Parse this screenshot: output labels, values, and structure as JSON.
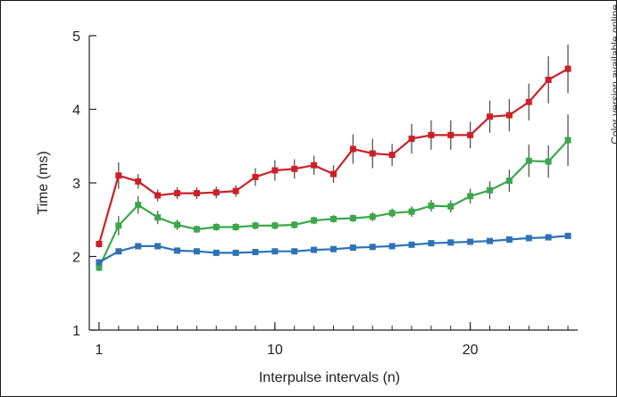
{
  "side_note": "Color version available online",
  "chart_data": {
    "type": "line",
    "title": "",
    "xlabel": "Interpulse intervals (n)",
    "ylabel": "Time (ms)",
    "xlim": [
      0.5,
      25.5
    ],
    "ylim": [
      1,
      5
    ],
    "xticks": [
      1,
      10,
      20
    ],
    "yticks": [
      1,
      2,
      3,
      4,
      5
    ],
    "grid": false,
    "legend": "none",
    "x": [
      1,
      2,
      3,
      4,
      5,
      6,
      7,
      8,
      9,
      10,
      11,
      12,
      13,
      14,
      15,
      16,
      17,
      18,
      19,
      20,
      21,
      22,
      23,
      24,
      25
    ],
    "series": [
      {
        "color": "#cc2026",
        "values": [
          2.17,
          3.1,
          3.02,
          2.83,
          2.86,
          2.86,
          2.87,
          2.89,
          3.08,
          3.17,
          3.19,
          3.24,
          3.12,
          3.46,
          3.4,
          3.38,
          3.6,
          3.65,
          3.65,
          3.65,
          3.9,
          3.92,
          4.1,
          4.4,
          4.55
        ],
        "errors": [
          0.05,
          0.18,
          0.1,
          0.08,
          0.08,
          0.08,
          0.08,
          0.08,
          0.12,
          0.14,
          0.13,
          0.13,
          0.12,
          0.2,
          0.2,
          0.15,
          0.2,
          0.2,
          0.2,
          0.18,
          0.22,
          0.22,
          0.25,
          0.32,
          0.33
        ]
      },
      {
        "color": "#3aa84a",
        "values": [
          1.85,
          2.42,
          2.7,
          2.53,
          2.43,
          2.37,
          2.4,
          2.4,
          2.42,
          2.42,
          2.43,
          2.49,
          2.51,
          2.52,
          2.54,
          2.59,
          2.61,
          2.69,
          2.68,
          2.82,
          2.9,
          3.03,
          3.3,
          3.29,
          3.58
        ],
        "errors": [
          0.05,
          0.13,
          0.12,
          0.09,
          0.07,
          0.05,
          0.05,
          0.05,
          0.05,
          0.05,
          0.05,
          0.05,
          0.05,
          0.05,
          0.06,
          0.06,
          0.07,
          0.08,
          0.08,
          0.1,
          0.12,
          0.15,
          0.22,
          0.22,
          0.35
        ]
      },
      {
        "color": "#2d72b8",
        "values": [
          1.92,
          2.07,
          2.14,
          2.14,
          2.08,
          2.07,
          2.05,
          2.05,
          2.06,
          2.07,
          2.07,
          2.09,
          2.1,
          2.12,
          2.13,
          2.14,
          2.16,
          2.18,
          2.19,
          2.2,
          2.21,
          2.23,
          2.25,
          2.26,
          2.28
        ],
        "errors": [
          0.03,
          0.03,
          0.03,
          0.03,
          0.03,
          0.03,
          0.03,
          0.03,
          0.03,
          0.03,
          0.03,
          0.03,
          0.03,
          0.03,
          0.03,
          0.03,
          0.03,
          0.03,
          0.03,
          0.03,
          0.03,
          0.03,
          0.03,
          0.03,
          0.03
        ]
      }
    ]
  }
}
